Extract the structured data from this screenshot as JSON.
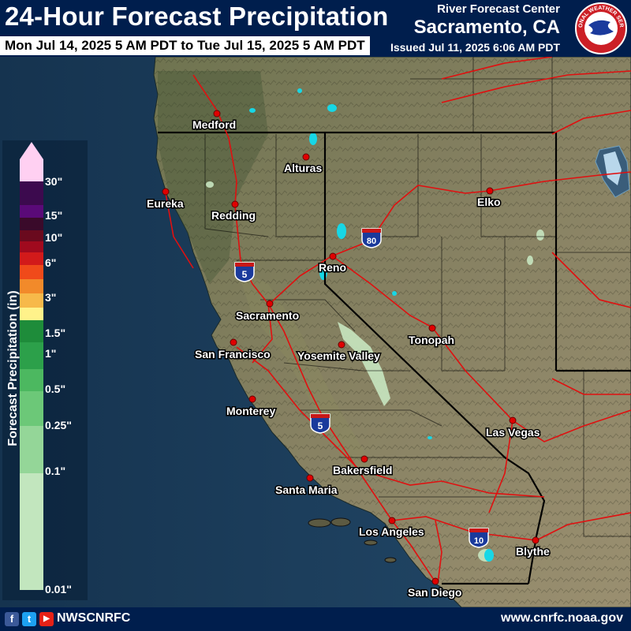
{
  "header": {
    "title": "24-Hour Forecast Precipitation",
    "valid_period": "Mon Jul 14, 2025 5 AM PDT to Tue Jul 15, 2025 5 AM PDT",
    "center_name": "River Forecast Center",
    "center_location": "Sacramento, CA",
    "issued": "Issued Jul 11, 2025 6:06 AM PDT",
    "logo_text": "NATIONAL WEATHER SERVICE"
  },
  "cities": [
    {
      "id": "medford",
      "name": "Medford"
    },
    {
      "id": "alturas",
      "name": "Alturas"
    },
    {
      "id": "eureka",
      "name": "Eureka"
    },
    {
      "id": "redding",
      "name": "Redding"
    },
    {
      "id": "elko",
      "name": "Elko"
    },
    {
      "id": "reno",
      "name": "Reno"
    },
    {
      "id": "sacramento",
      "name": "Sacramento"
    },
    {
      "id": "san-francisco",
      "name": "San Francisco"
    },
    {
      "id": "yosemite-valley",
      "name": "Yosemite Valley"
    },
    {
      "id": "tonopah",
      "name": "Tonopah"
    },
    {
      "id": "monterey",
      "name": "Monterey"
    },
    {
      "id": "las-vegas",
      "name": "Las Vegas"
    },
    {
      "id": "bakersfield",
      "name": "Bakersfield"
    },
    {
      "id": "santa-maria",
      "name": "Santa Maria"
    },
    {
      "id": "los-angeles",
      "name": "Los Angeles"
    },
    {
      "id": "blythe",
      "name": "Blythe"
    },
    {
      "id": "san-diego",
      "name": "San Diego"
    }
  ],
  "highways": [
    {
      "id": "i5-north",
      "number": "5"
    },
    {
      "id": "i80",
      "number": "80"
    },
    {
      "id": "i5-south",
      "number": "5"
    },
    {
      "id": "i10",
      "number": "10"
    }
  ],
  "legend": {
    "title": "Forecast Precipitation (in)",
    "labels": [
      "30\"",
      "15\"",
      "10\"",
      "6\"",
      "3\"",
      "1.5\"",
      "1\"",
      "0.5\"",
      "0.25\"",
      "0.1\"",
      "0.01\""
    ],
    "colors": [
      "#ffd0f2",
      "#3c0a4e",
      "#5a0a78",
      "#3a0a2a",
      "#6a0a1e",
      "#a00a1e",
      "#d21a1a",
      "#f04a1a",
      "#f28a2a",
      "#f7b94a",
      "#fff28a",
      "#1e8c3a",
      "#2ca04a",
      "#4cb860",
      "#6cc878",
      "#94d698",
      "#c2e6be"
    ],
    "colors_meaning": "color scale from highest to lowest"
  },
  "footer": {
    "facebook_icon": "f",
    "twitter_icon": "t",
    "youtube_icon": "▶",
    "handle": "NWSCNRFC",
    "website": "www.cnrfc.noaa.gov"
  },
  "colors": {
    "ocean": "#1d3f5e",
    "land": "#7f7b5a",
    "highway": "#e01010",
    "city_marker": "#e00000",
    "light_precip": "#c8e6c0",
    "water": "#17d7e6",
    "banner": "#001e4d"
  }
}
